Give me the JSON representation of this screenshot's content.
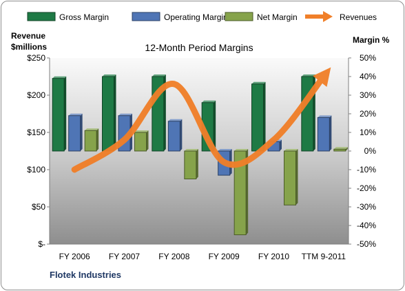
{
  "chart_data": {
    "type": "bar",
    "title": "12-Month Period Margins",
    "categories": [
      "FY 2006",
      "FY 2007",
      "FY 2008",
      "FY 2009",
      "FY 2010",
      "TTM 9-2011"
    ],
    "series": [
      {
        "name": "Gross Margin",
        "axis": "right",
        "unit": "%",
        "values": [
          39,
          40,
          40,
          26,
          36,
          40
        ],
        "color": "#1e7a45"
      },
      {
        "name": "Operating Margin",
        "axis": "right",
        "unit": "%",
        "values": [
          19,
          19,
          16,
          -13,
          5,
          18
        ],
        "color": "#4f75b5"
      },
      {
        "name": "Net Margin",
        "axis": "right",
        "unit": "%",
        "values": [
          11,
          10,
          -15,
          -45,
          -29,
          1
        ],
        "color": "#86a34b"
      },
      {
        "name": "Revenues",
        "type": "line",
        "axis": "left",
        "unit": "$millions",
        "values": [
          100,
          140,
          215,
          110,
          140,
          225
        ],
        "color": "#f07f29"
      }
    ],
    "left_axis": {
      "title_line1": "Revenue",
      "title_line2": "$millions",
      "range": [
        0,
        250
      ],
      "ticks": [
        0,
        50,
        100,
        150,
        200,
        250
      ],
      "tick_labels": [
        "$-",
        "$50",
        "$100",
        "$150",
        "$200",
        "$250"
      ]
    },
    "right_axis": {
      "title": "Margin %",
      "range": [
        -50,
        50
      ],
      "ticks": [
        -50,
        -40,
        -30,
        -20,
        -10,
        0,
        10,
        20,
        30,
        40,
        50
      ],
      "tick_labels": [
        "-50%",
        "-40%",
        "-30%",
        "-20%",
        "-10%",
        "0%",
        "10%",
        "20%",
        "30%",
        "40%",
        "50%"
      ]
    },
    "legend_position": "top",
    "grid": false,
    "source_label": "Flotek Industries"
  }
}
